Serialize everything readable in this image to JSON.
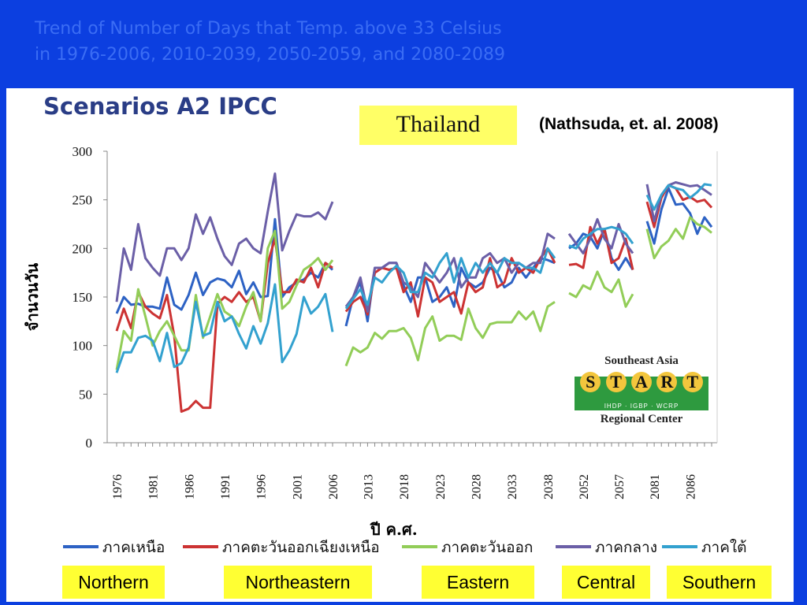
{
  "slide": {
    "title_line1": "Trend of Number of Days that Temp. above 33 Celsius",
    "title_line2": "in 1976-2006, 2010-2039, 2050-2059, and 2080-2089",
    "scenario": "Scenarios A2 IPCC",
    "country": "Thailand",
    "citation": "(Nathsuda, et. al. 2008)",
    "regions": [
      "Northern",
      "Northeastern",
      "Eastern",
      "Central",
      "Southern"
    ],
    "logo": {
      "line1": "Southeast Asia",
      "letters": [
        "S",
        "T",
        "A",
        "R",
        "T"
      ],
      "line2": "IHDP · IGBP · WCRP",
      "line3": "Regional Center"
    }
  },
  "chart_data": {
    "type": "line",
    "ylabel": "จำนวนวัน",
    "xlabel": "ปี ค.ศ.",
    "ylim": [
      0,
      300
    ],
    "yticks": [
      0,
      50,
      100,
      150,
      200,
      250,
      300
    ],
    "grid": false,
    "legend_position": "bottom",
    "segments": [
      {
        "start": 1976,
        "end": 2006,
        "ticks": [
          1976,
          1981,
          1986,
          1991,
          1996,
          2001,
          2006
        ]
      },
      {
        "start": 2010,
        "end": 2039,
        "ticks": [
          2013,
          2018,
          2023,
          2028,
          2033,
          2038
        ]
      },
      {
        "start": 2050,
        "end": 2059,
        "ticks": [
          2052,
          2057
        ]
      },
      {
        "start": 2080,
        "end": 2089,
        "ticks": [
          2081,
          2086
        ]
      }
    ],
    "series": [
      {
        "name": "ภาคเหนือ",
        "color": "#2d62c4",
        "values": [
          [
            133,
            150,
            142,
            143,
            140,
            140,
            138,
            170,
            142,
            137,
            152,
            175,
            152,
            165,
            169,
            167,
            160,
            177,
            153,
            165,
            150,
            151,
            230,
            150,
            160,
            165,
            168,
            175,
            170,
            185,
            178
          ],
          [
            120,
            150,
            165,
            125,
            180,
            180,
            185,
            185,
            162,
            145,
            170,
            170,
            145,
            150,
            160,
            140,
            180,
            165,
            160,
            165,
            180,
            175,
            160,
            165,
            180,
            170,
            180,
            190,
            188,
            185
          ],
          [
            200,
            205,
            215,
            212,
            200,
            220,
            190,
            178,
            190,
            178
          ],
          [
            228,
            205,
            240,
            262,
            245,
            246,
            236,
            215,
            232,
            222
          ]
        ]
      },
      {
        "name": "ภาคตะวันออกเฉียงเหนือ",
        "color": "#cc3333",
        "values": [
          [
            115,
            138,
            118,
            155,
            140,
            133,
            128,
            152,
            110,
            32,
            35,
            43,
            36,
            36,
            143,
            150,
            145,
            155,
            145,
            150,
            125,
            185,
            210,
            155,
            155,
            168,
            165,
            180,
            160,
            185,
            180
          ],
          [
            135,
            145,
            150,
            132,
            175,
            180,
            178,
            180,
            155,
            165,
            130,
            170,
            165,
            145,
            150,
            155,
            133,
            165,
            155,
            160,
            190,
            160,
            165,
            190,
            175,
            180,
            175,
            190,
            200,
            185
          ],
          [
            183,
            184,
            180,
            222,
            205,
            220,
            185,
            190,
            210,
            178
          ],
          [
            248,
            222,
            252,
            265,
            262,
            250,
            253,
            248,
            250,
            242
          ]
        ]
      },
      {
        "name": "ภาคตะวันออก",
        "color": "#92cd58",
        "values": [
          [
            75,
            115,
            105,
            158,
            130,
            100,
            115,
            125,
            110,
            95,
            95,
            152,
            108,
            130,
            153,
            135,
            130,
            120,
            140,
            155,
            125,
            200,
            218,
            138,
            145,
            162,
            178,
            183,
            190,
            178,
            188
          ],
          [
            79,
            98,
            93,
            98,
            113,
            107,
            115,
            115,
            118,
            108,
            85,
            118,
            130,
            105,
            110,
            110,
            106,
            138,
            118,
            108,
            122,
            124,
            124,
            124,
            135,
            127,
            135,
            115,
            140,
            145
          ],
          [
            154,
            150,
            162,
            158,
            176,
            160,
            155,
            168,
            140,
            153
          ],
          [
            220,
            190,
            202,
            208,
            220,
            210,
            232,
            225,
            222,
            216
          ]
        ]
      },
      {
        "name": "ภาคกลาง",
        "color": "#6b5fa7",
        "values": [
          [
            145,
            200,
            178,
            225,
            190,
            180,
            172,
            200,
            200,
            188,
            200,
            235,
            215,
            232,
            210,
            192,
            183,
            205,
            210,
            200,
            195,
            238,
            277,
            198,
            218,
            235,
            233,
            233,
            237,
            230,
            248
          ],
          [
            140,
            150,
            170,
            135,
            180,
            180,
            185,
            185,
            165,
            160,
            150,
            185,
            175,
            165,
            175,
            190,
            160,
            170,
            170,
            190,
            195,
            185,
            190,
            175,
            185,
            180,
            185,
            185,
            215,
            210
          ],
          [
            215,
            205,
            195,
            210,
            230,
            210,
            200,
            225,
            205,
            195
          ],
          [
            266,
            228,
            255,
            265,
            268,
            266,
            264,
            265,
            260,
            255
          ]
        ]
      },
      {
        "name": "ภาคใต้",
        "color": "#33a1cf",
        "values": [
          [
            72,
            93,
            93,
            108,
            110,
            105,
            84,
            113,
            78,
            82,
            98,
            145,
            110,
            113,
            145,
            125,
            130,
            112,
            97,
            120,
            102,
            123,
            163,
            83,
            95,
            112,
            150,
            133,
            140,
            153,
            114
          ],
          [
            138,
            148,
            158,
            142,
            170,
            165,
            175,
            182,
            175,
            155,
            155,
            175,
            170,
            185,
            195,
            165,
            190,
            170,
            185,
            175,
            185,
            175,
            190,
            185,
            185,
            180,
            180,
            175,
            200,
            190
          ],
          [
            203,
            200,
            210,
            215,
            220,
            220,
            222,
            220,
            215,
            205
          ],
          [
            255,
            240,
            255,
            265,
            262,
            260,
            252,
            258,
            266,
            265
          ]
        ]
      }
    ]
  }
}
